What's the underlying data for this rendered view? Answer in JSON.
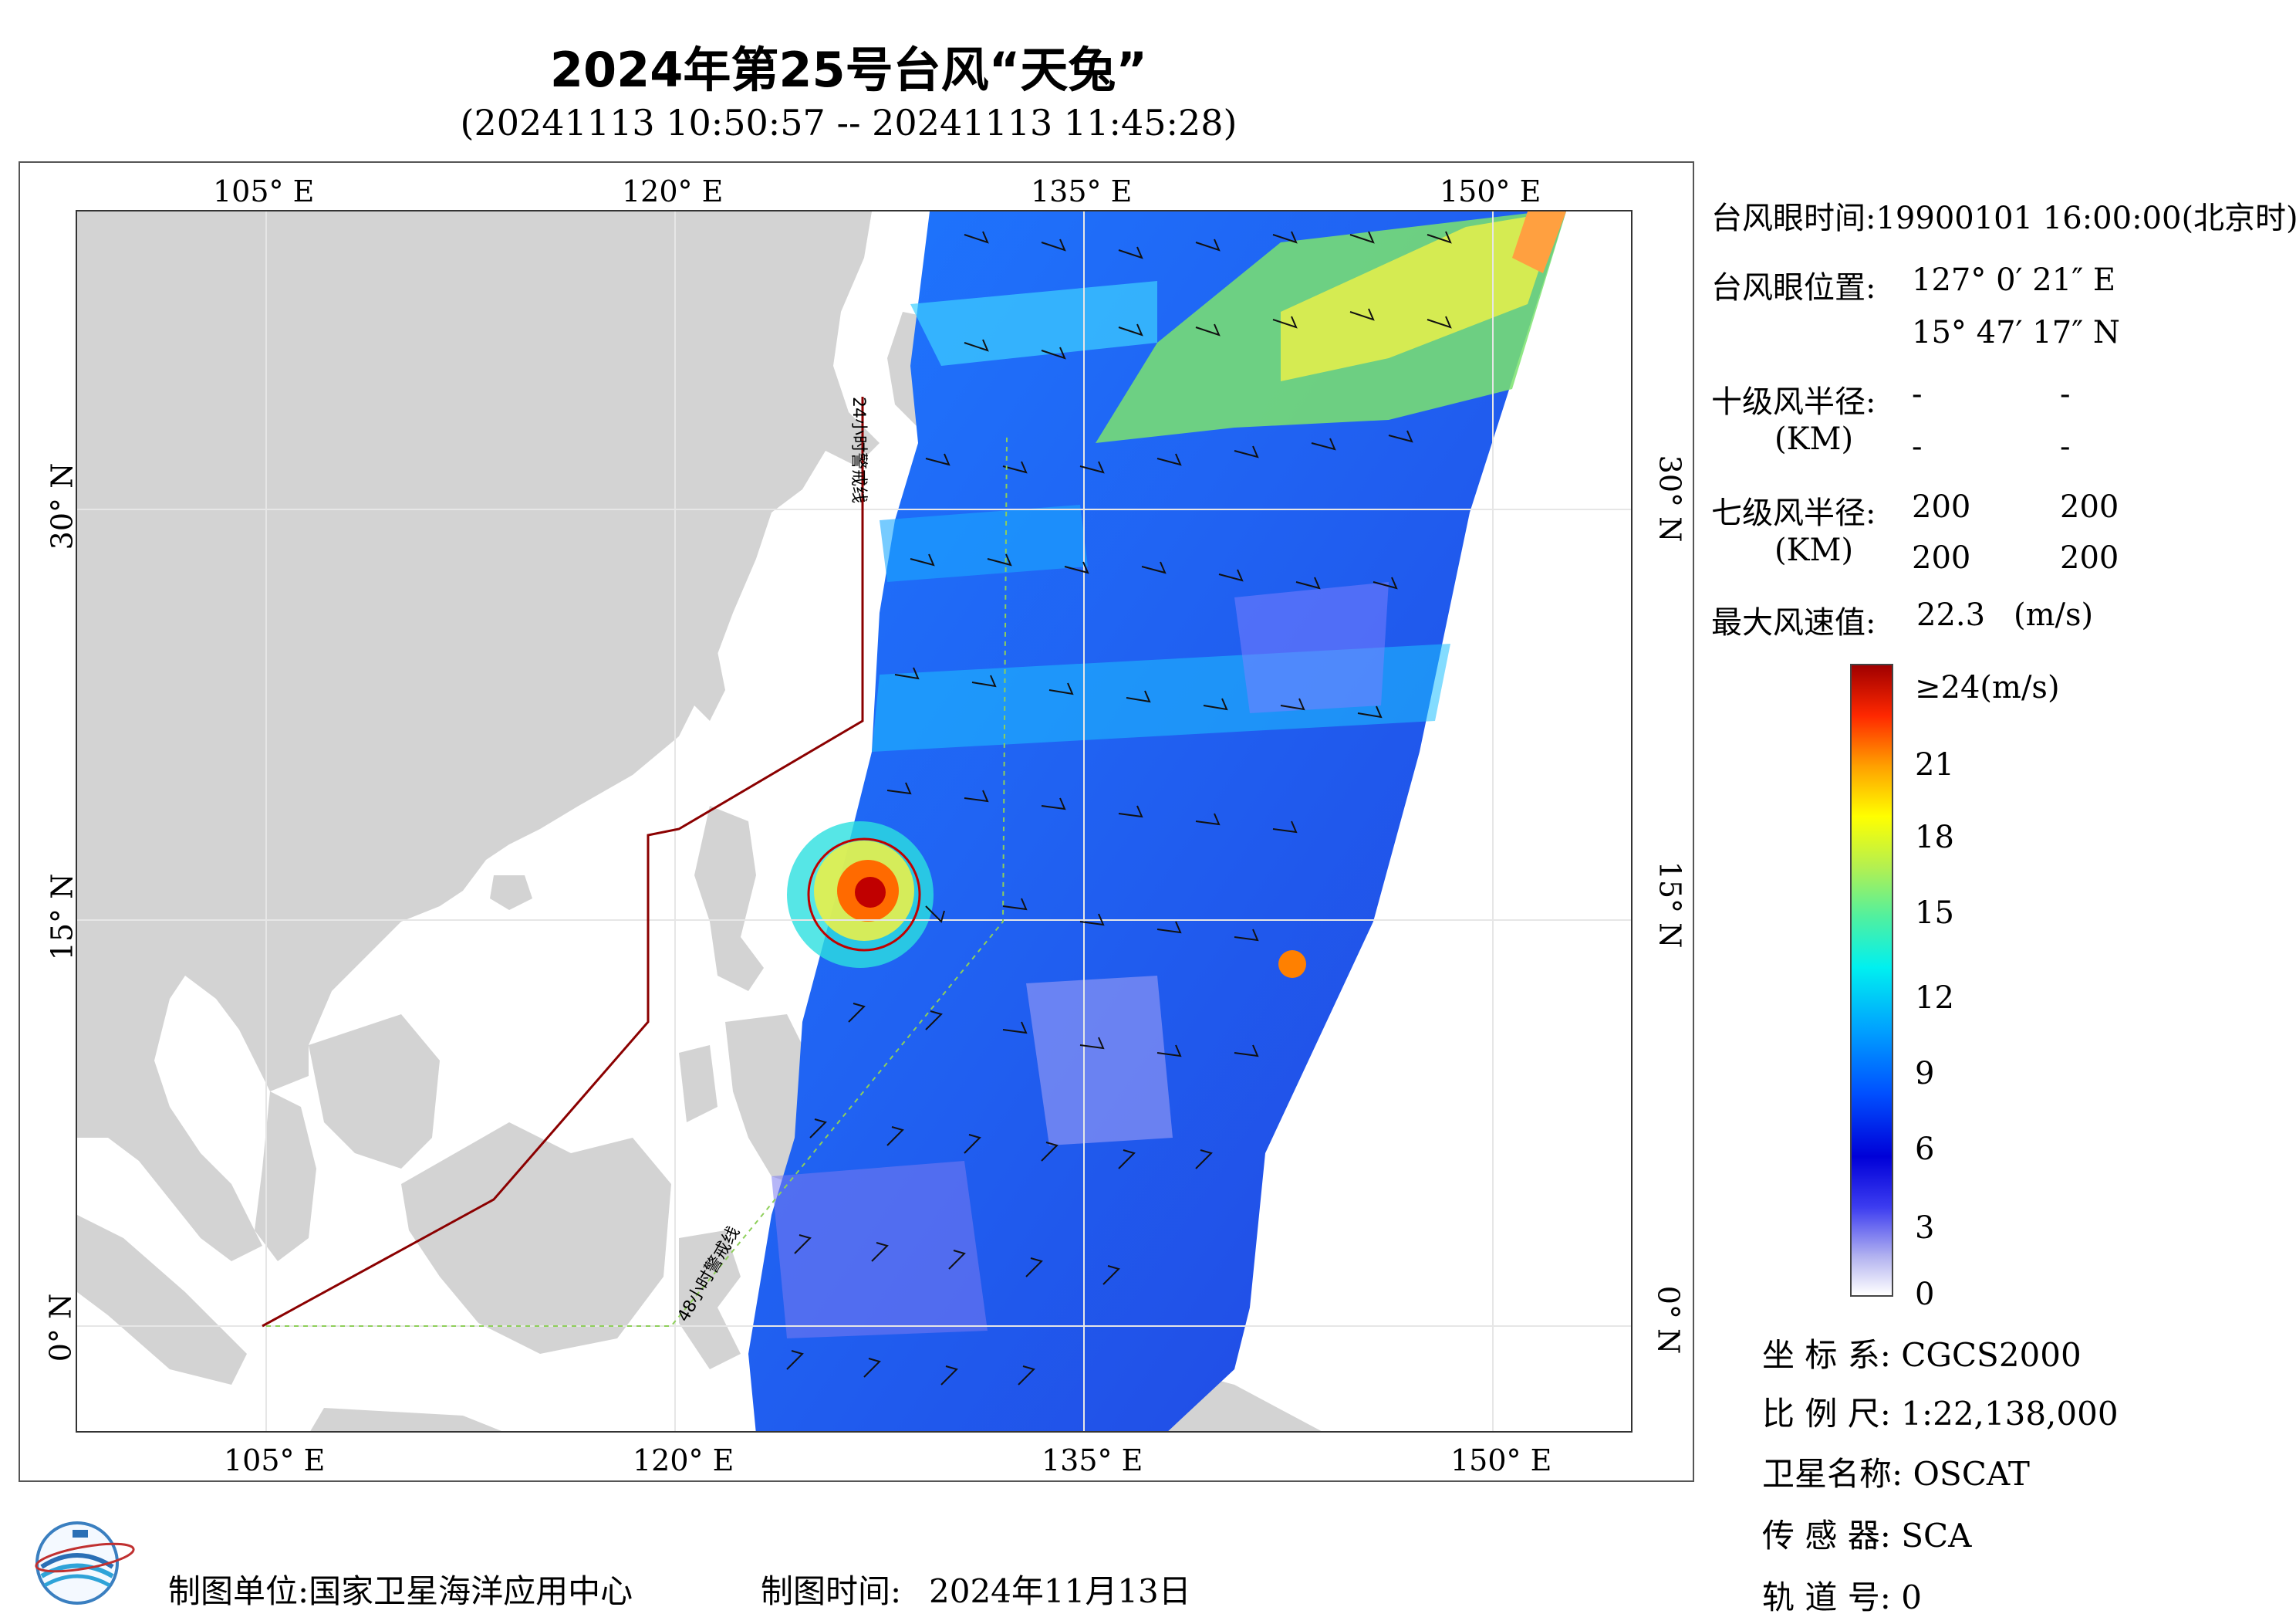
{
  "title": "2024年第25号台风“天兔”",
  "subtitle": "(20241113 10:50:57 -- 20241113 11:45:28)",
  "axes": {
    "top_lon_labels": [
      "105° E",
      "120° E",
      "135° E",
      "150° E"
    ],
    "bottom_lon_labels": [
      "105° E",
      "120° E",
      "135° E",
      "150° E"
    ],
    "left_lat_labels": [
      "30° N",
      "15° N",
      "0° N"
    ],
    "right_lat_labels": [
      "30° N",
      "15° N",
      "0° N"
    ]
  },
  "map_annotations": {
    "line_24h": "24小时警戒线",
    "line_48h": "48小时警戒线"
  },
  "info": {
    "eye_time_label": "台风眼时间:",
    "eye_time_value": "19900101 16:00:00(北京时)",
    "eye_pos_label": "台风眼位置:",
    "eye_lon": "127° 0′ 21″ E",
    "eye_lat": "15° 47′ 17″ N",
    "r10_label": "十级风半径:",
    "r10_unit": "(KM)",
    "r10_values": [
      "-",
      "-",
      "-",
      "-"
    ],
    "r7_label": "七级风半径:",
    "r7_unit": "(KM)",
    "r7_values": [
      "200",
      "200",
      "200",
      "200"
    ],
    "max_wind_label": "最大风速值:",
    "max_wind_value": "22.3",
    "max_wind_unit": "(m/s)"
  },
  "colorbar": {
    "labels": [
      "≥24(m/s)",
      "21",
      "18",
      "15",
      "12",
      "9",
      "6",
      "3",
      "0"
    ],
    "colors": [
      "#a00000",
      "#ff2800",
      "#ffa000",
      "#ffff00",
      "#b4f050",
      "#00f0f0",
      "#0050ff",
      "#0000d8",
      "#ffffff"
    ]
  },
  "meta": {
    "crs_label": "坐 标 系:",
    "crs_value": "CGCS2000",
    "scale_label": "比 例 尺:",
    "scale_value": "1:22,138,000",
    "sat_label": "卫星名称:",
    "sat_value": "OSCAT",
    "sensor_label": "传 感 器:",
    "sensor_value": "SCA",
    "orbit_label": "轨 道 号:",
    "orbit_value": "0"
  },
  "footer": {
    "unit_label": "制图单位:国家卫星海洋应用中心",
    "time_label": "制图时间:",
    "time_value": "2024年11月13日"
  }
}
